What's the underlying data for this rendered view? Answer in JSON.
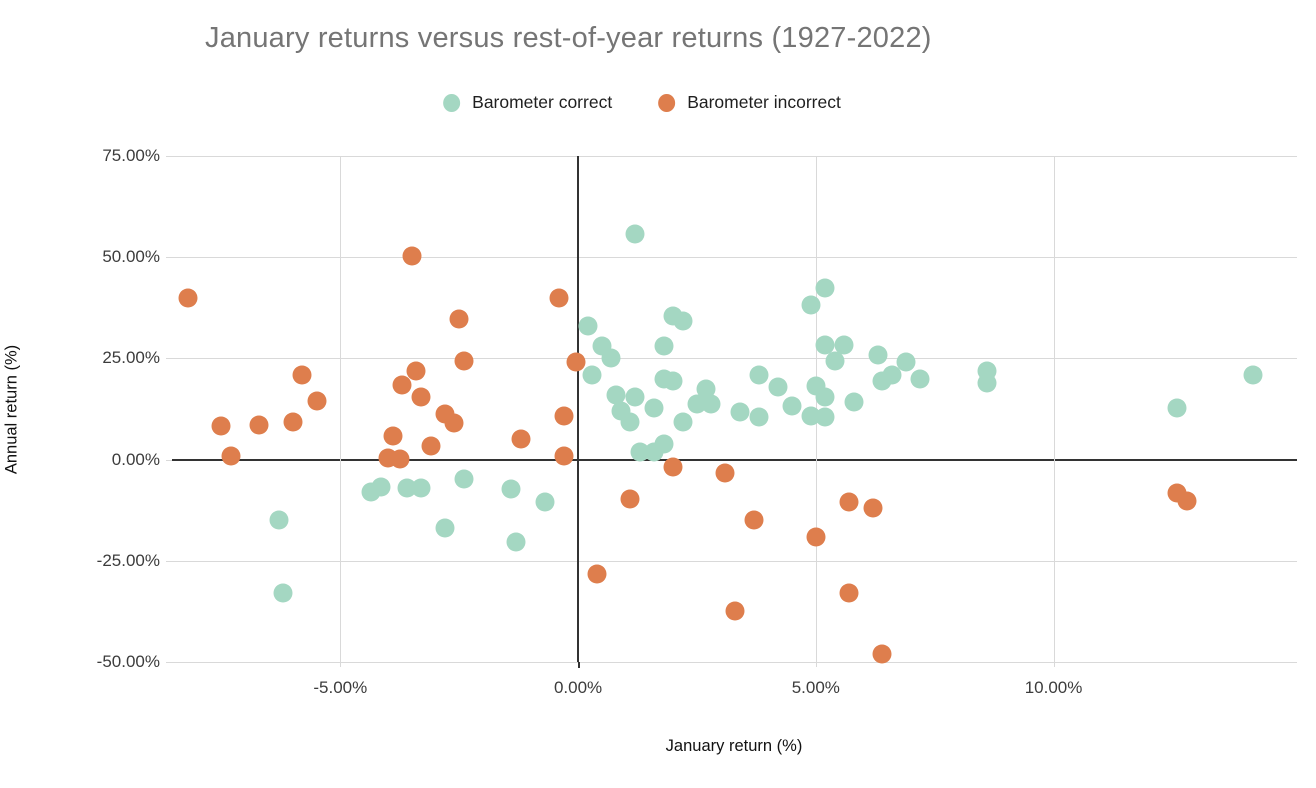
{
  "title": "January returns versus rest-of-year returns (1927-2022)",
  "legend": [
    {
      "label": "Barometer correct",
      "color": "#a4d7c2"
    },
    {
      "label": "Barometer incorrect",
      "color": "#de7e4d"
    }
  ],
  "axis_titles": {
    "y": "Annual return (%)",
    "x": "January return (%)"
  },
  "chart_data": {
    "type": "scatter",
    "title": "January returns versus rest-of-year returns (1927-2022)",
    "xlabel": "January return (%)",
    "ylabel": "Annual return (%)",
    "xlim": [
      -8.54,
      15.12
    ],
    "ylim": [
      -50,
      75
    ],
    "grid": true,
    "legend_position": "top",
    "x_ticks": [
      {
        "value": -5,
        "label": "-5.00%"
      },
      {
        "value": 0,
        "label": "0.00%"
      },
      {
        "value": 5,
        "label": "5.00%"
      },
      {
        "value": 10,
        "label": "10.00%"
      }
    ],
    "y_ticks": [
      {
        "value": 75,
        "label": "75.00%"
      },
      {
        "value": 50,
        "label": "50.00%"
      },
      {
        "value": 25,
        "label": "25.00%"
      },
      {
        "value": 0,
        "label": "0.00%"
      },
      {
        "value": -25,
        "label": "-25.00%"
      },
      {
        "value": -50,
        "label": "-50.00%"
      }
    ],
    "series": [
      {
        "name": "Barometer correct",
        "color": "#a4d7c2",
        "points": [
          [
            -6.3,
            -15
          ],
          [
            -6.2,
            -33
          ],
          [
            -4.35,
            -8
          ],
          [
            -4.15,
            -6.8
          ],
          [
            -3.6,
            -7
          ],
          [
            -3.3,
            -7
          ],
          [
            -2.8,
            -17
          ],
          [
            -2.4,
            -4.8
          ],
          [
            -1.4,
            -7.3
          ],
          [
            -1.3,
            -20.3
          ],
          [
            -0.7,
            -10.5
          ],
          [
            0.2,
            33
          ],
          [
            0.3,
            20.8
          ],
          [
            0.5,
            28
          ],
          [
            0.7,
            25
          ],
          [
            0.8,
            16
          ],
          [
            0.9,
            12
          ],
          [
            1.1,
            9.3
          ],
          [
            1.2,
            55.8
          ],
          [
            1.2,
            15.5
          ],
          [
            1.3,
            2
          ],
          [
            1.6,
            1.8
          ],
          [
            1.6,
            12.8
          ],
          [
            1.8,
            28
          ],
          [
            1.8,
            20
          ],
          [
            1.8,
            3.8
          ],
          [
            2,
            35.5
          ],
          [
            2.2,
            34.3
          ],
          [
            2,
            19.3
          ],
          [
            2.2,
            9.3
          ],
          [
            2.5,
            13.8
          ],
          [
            2.8,
            13.8
          ],
          [
            2.7,
            17.5
          ],
          [
            3.4,
            11.8
          ],
          [
            3.8,
            20.8
          ],
          [
            3.8,
            10.5
          ],
          [
            4.2,
            18
          ],
          [
            4.5,
            13.3
          ],
          [
            4.9,
            38.3
          ],
          [
            5.2,
            42.5
          ],
          [
            5,
            18.3
          ],
          [
            5.2,
            15.5
          ],
          [
            4.9,
            10.8
          ],
          [
            5.2,
            10.5
          ],
          [
            5.2,
            28.3
          ],
          [
            5.6,
            28.3
          ],
          [
            5.4,
            24.3
          ],
          [
            5.8,
            14.3
          ],
          [
            6.3,
            25.8
          ],
          [
            6.4,
            19.3
          ],
          [
            6.6,
            20.8
          ],
          [
            6.9,
            24
          ],
          [
            7.2,
            20
          ],
          [
            8.6,
            22
          ],
          [
            8.6,
            18.8
          ],
          [
            12.6,
            12.8
          ],
          [
            14.2,
            21
          ]
        ]
      },
      {
        "name": "Barometer incorrect",
        "color": "#de7e4d",
        "points": [
          [
            -8.2,
            40
          ],
          [
            -7.5,
            8.3
          ],
          [
            -7.3,
            0.8
          ],
          [
            -6.7,
            8.5
          ],
          [
            -6,
            9.3
          ],
          [
            -5.8,
            20.8
          ],
          [
            -5.5,
            14.5
          ],
          [
            -4,
            0.5
          ],
          [
            -3.9,
            5.8
          ],
          [
            -3.75,
            0.2
          ],
          [
            -3.7,
            18.5
          ],
          [
            -3.5,
            50.3
          ],
          [
            -3.4,
            21.8
          ],
          [
            -3.3,
            15.5
          ],
          [
            -3.1,
            3.3
          ],
          [
            -2.8,
            11.3
          ],
          [
            -2.6,
            9
          ],
          [
            -2.5,
            34.8
          ],
          [
            -2.4,
            24.3
          ],
          [
            -1.2,
            5
          ],
          [
            -0.4,
            39.8
          ],
          [
            -0.3,
            10.8
          ],
          [
            -0.3,
            0.8
          ],
          [
            -0.05,
            24
          ],
          [
            0.4,
            -28.3
          ],
          [
            1.1,
            -9.8
          ],
          [
            2,
            -1.8
          ],
          [
            3.1,
            -3.3
          ],
          [
            3.3,
            -37.3
          ],
          [
            3.7,
            -15
          ],
          [
            5,
            -19
          ],
          [
            5.7,
            -10.5
          ],
          [
            5.7,
            -33
          ],
          [
            6.2,
            -12
          ],
          [
            6.4,
            -48
          ],
          [
            12.6,
            -8.3
          ],
          [
            12.8,
            -10.3
          ]
        ]
      }
    ]
  }
}
